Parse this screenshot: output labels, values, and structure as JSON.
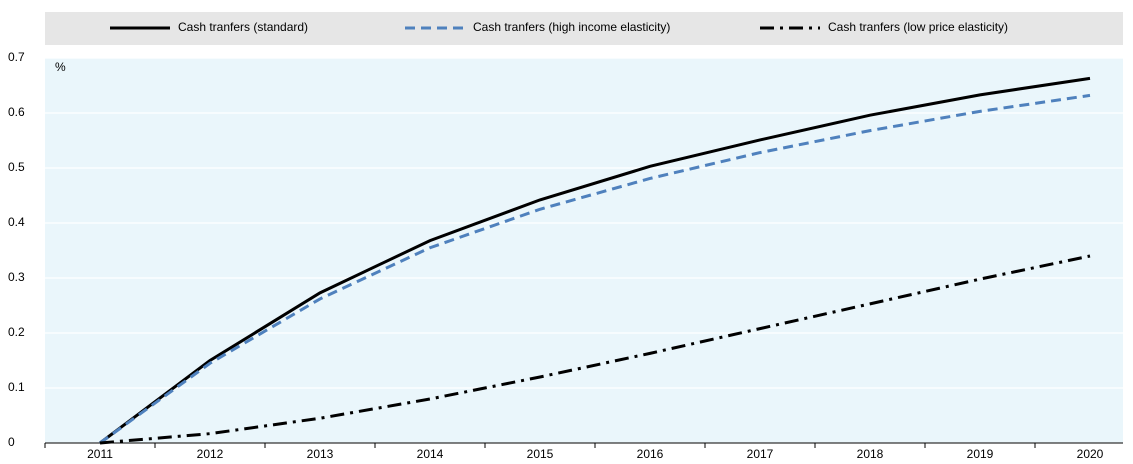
{
  "chart_data": {
    "type": "line",
    "unit_label": "%",
    "categories": [
      "2011",
      "2012",
      "2013",
      "2014",
      "2015",
      "2016",
      "2017",
      "2018",
      "2019",
      "2020"
    ],
    "series": [
      {
        "name": "Cash tranfers (standard)",
        "color": "#000000",
        "line_style": "solid",
        "values": [
          0,
          0.15,
          0.273,
          0.368,
          0.442,
          0.503,
          0.551,
          0.596,
          0.633,
          0.663
        ]
      },
      {
        "name": "Cash tranfers (high income elasticity)",
        "color": "#4f81bd",
        "line_style": "dashed",
        "values": [
          0,
          0.145,
          0.262,
          0.355,
          0.425,
          0.481,
          0.528,
          0.568,
          0.603,
          0.632
        ]
      },
      {
        "name": "Cash tranfers (low price elasticity)",
        "color": "#000000",
        "line_style": "dashdot",
        "values": [
          0,
          0.017,
          0.045,
          0.08,
          0.12,
          0.163,
          0.208,
          0.253,
          0.298,
          0.34
        ]
      }
    ],
    "ylim": [
      0,
      0.7
    ],
    "yticks": [
      0,
      0.1,
      0.2,
      0.3,
      0.4,
      0.5,
      0.6,
      0.7
    ],
    "grid": true,
    "legend": "top",
    "plot_background": "#eaf6fb"
  }
}
